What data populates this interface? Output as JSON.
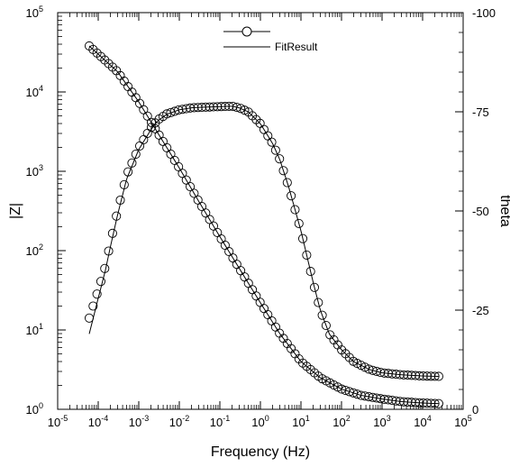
{
  "chart_data": {
    "type": "line",
    "title": "",
    "xlabel": "Frequency (Hz)",
    "ylabel_left": "|Z|",
    "ylabel_right": "theta",
    "x_scale": "log",
    "y_left_scale": "log",
    "xlim": [
      1e-05,
      100000
    ],
    "ylim_left": [
      1,
      100000
    ],
    "ylim_right": [
      0,
      -100
    ],
    "x_ticks": [
      {
        "base": "10",
        "exp": "-5"
      },
      {
        "base": "10",
        "exp": "-4"
      },
      {
        "base": "10",
        "exp": "-3"
      },
      {
        "base": "10",
        "exp": "-2"
      },
      {
        "base": "10",
        "exp": "-1"
      },
      {
        "base": "10",
        "exp": "0"
      },
      {
        "base": "10",
        "exp": "1"
      },
      {
        "base": "10",
        "exp": "2"
      },
      {
        "base": "10",
        "exp": "3"
      },
      {
        "base": "10",
        "exp": "4"
      },
      {
        "base": "10",
        "exp": "5"
      }
    ],
    "y_left_ticks": [
      {
        "base": "10",
        "exp": "0"
      },
      {
        "base": "10",
        "exp": "1"
      },
      {
        "base": "10",
        "exp": "2"
      },
      {
        "base": "10",
        "exp": "3"
      },
      {
        "base": "10",
        "exp": "4"
      },
      {
        "base": "10",
        "exp": "5"
      }
    ],
    "y_right_ticks": [
      "0",
      "-25",
      "-50",
      "-75",
      "-100"
    ],
    "y_right_tick_values": [
      0,
      -25,
      -50,
      -75,
      -100
    ],
    "grid": false,
    "legend": {
      "placement": "top-center",
      "entries": [
        {
          "label": "",
          "style": "open-circle-marker-with-line"
        },
        {
          "label": "FitResult",
          "style": "line"
        }
      ]
    },
    "series": [
      {
        "axis": "left",
        "quantity": "|Z|",
        "marker": "open-circle",
        "x": [
          6e-05,
          0.0001,
          0.0003,
          0.001,
          0.003,
          0.01,
          0.03,
          0.1,
          0.3,
          1,
          3,
          10,
          30,
          100,
          300,
          1000,
          3000,
          10000,
          25000
        ],
        "y": [
          38000,
          30000,
          18000,
          7500,
          3000,
          1100,
          420,
          150,
          60,
          22,
          9,
          4,
          2.5,
          1.8,
          1.5,
          1.35,
          1.25,
          1.2,
          1.18
        ]
      },
      {
        "axis": "right",
        "quantity": "theta",
        "marker": "open-circle",
        "x": [
          6e-05,
          0.0001,
          0.00015,
          0.0002,
          0.0003,
          0.0005,
          0.001,
          0.002,
          0.003,
          0.005,
          0.01,
          0.02,
          0.05,
          0.1,
          0.2,
          0.3,
          0.5,
          1,
          2,
          3,
          5,
          10,
          20,
          30,
          50,
          100,
          200,
          500,
          1000,
          3000,
          10000,
          25000
        ],
        "y": [
          -23,
          -30,
          -36,
          -42,
          -50,
          -59,
          -66,
          -71,
          -73,
          -74.5,
          -75.5,
          -76,
          -76.2,
          -76.3,
          -76.4,
          -76,
          -75,
          -72,
          -67,
          -63,
          -56,
          -45,
          -32,
          -25,
          -19,
          -15,
          -12,
          -10,
          -9.2,
          -8.7,
          -8.4,
          -8.3
        ]
      },
      {
        "axis": "left",
        "quantity": "|Z|",
        "name": "FitResult",
        "marker": "none",
        "x": [
          6e-05,
          0.0001,
          0.0003,
          0.001,
          0.003,
          0.01,
          0.03,
          0.1,
          0.3,
          1,
          3,
          10,
          30,
          100,
          300,
          1000,
          3000,
          10000,
          25000
        ],
        "y": [
          38000,
          30000,
          18000,
          7500,
          3000,
          1100,
          420,
          150,
          60,
          22,
          9,
          4,
          2.5,
          1.8,
          1.5,
          1.35,
          1.25,
          1.2,
          1.18
        ]
      },
      {
        "axis": "right",
        "quantity": "theta",
        "name": "FitResult",
        "marker": "none",
        "x": [
          6e-05,
          0.0001,
          0.00015,
          0.0002,
          0.0003,
          0.0005,
          0.001,
          0.002,
          0.003,
          0.005,
          0.01,
          0.02,
          0.05,
          0.1,
          0.2,
          0.3,
          0.5,
          1,
          2,
          3,
          5,
          10,
          20,
          30,
          50,
          100,
          200,
          500,
          1000,
          3000,
          10000,
          25000
        ],
        "y": [
          -19,
          -28,
          -35,
          -41,
          -49,
          -58,
          -65.5,
          -70.5,
          -72.8,
          -74.4,
          -75.5,
          -76,
          -76.2,
          -76.3,
          -76.4,
          -76,
          -75,
          -72,
          -67,
          -63,
          -56,
          -45,
          -32,
          -25,
          -19,
          -15,
          -12,
          -10,
          -9.2,
          -8.7,
          -8.4,
          -8.3
        ]
      }
    ]
  }
}
